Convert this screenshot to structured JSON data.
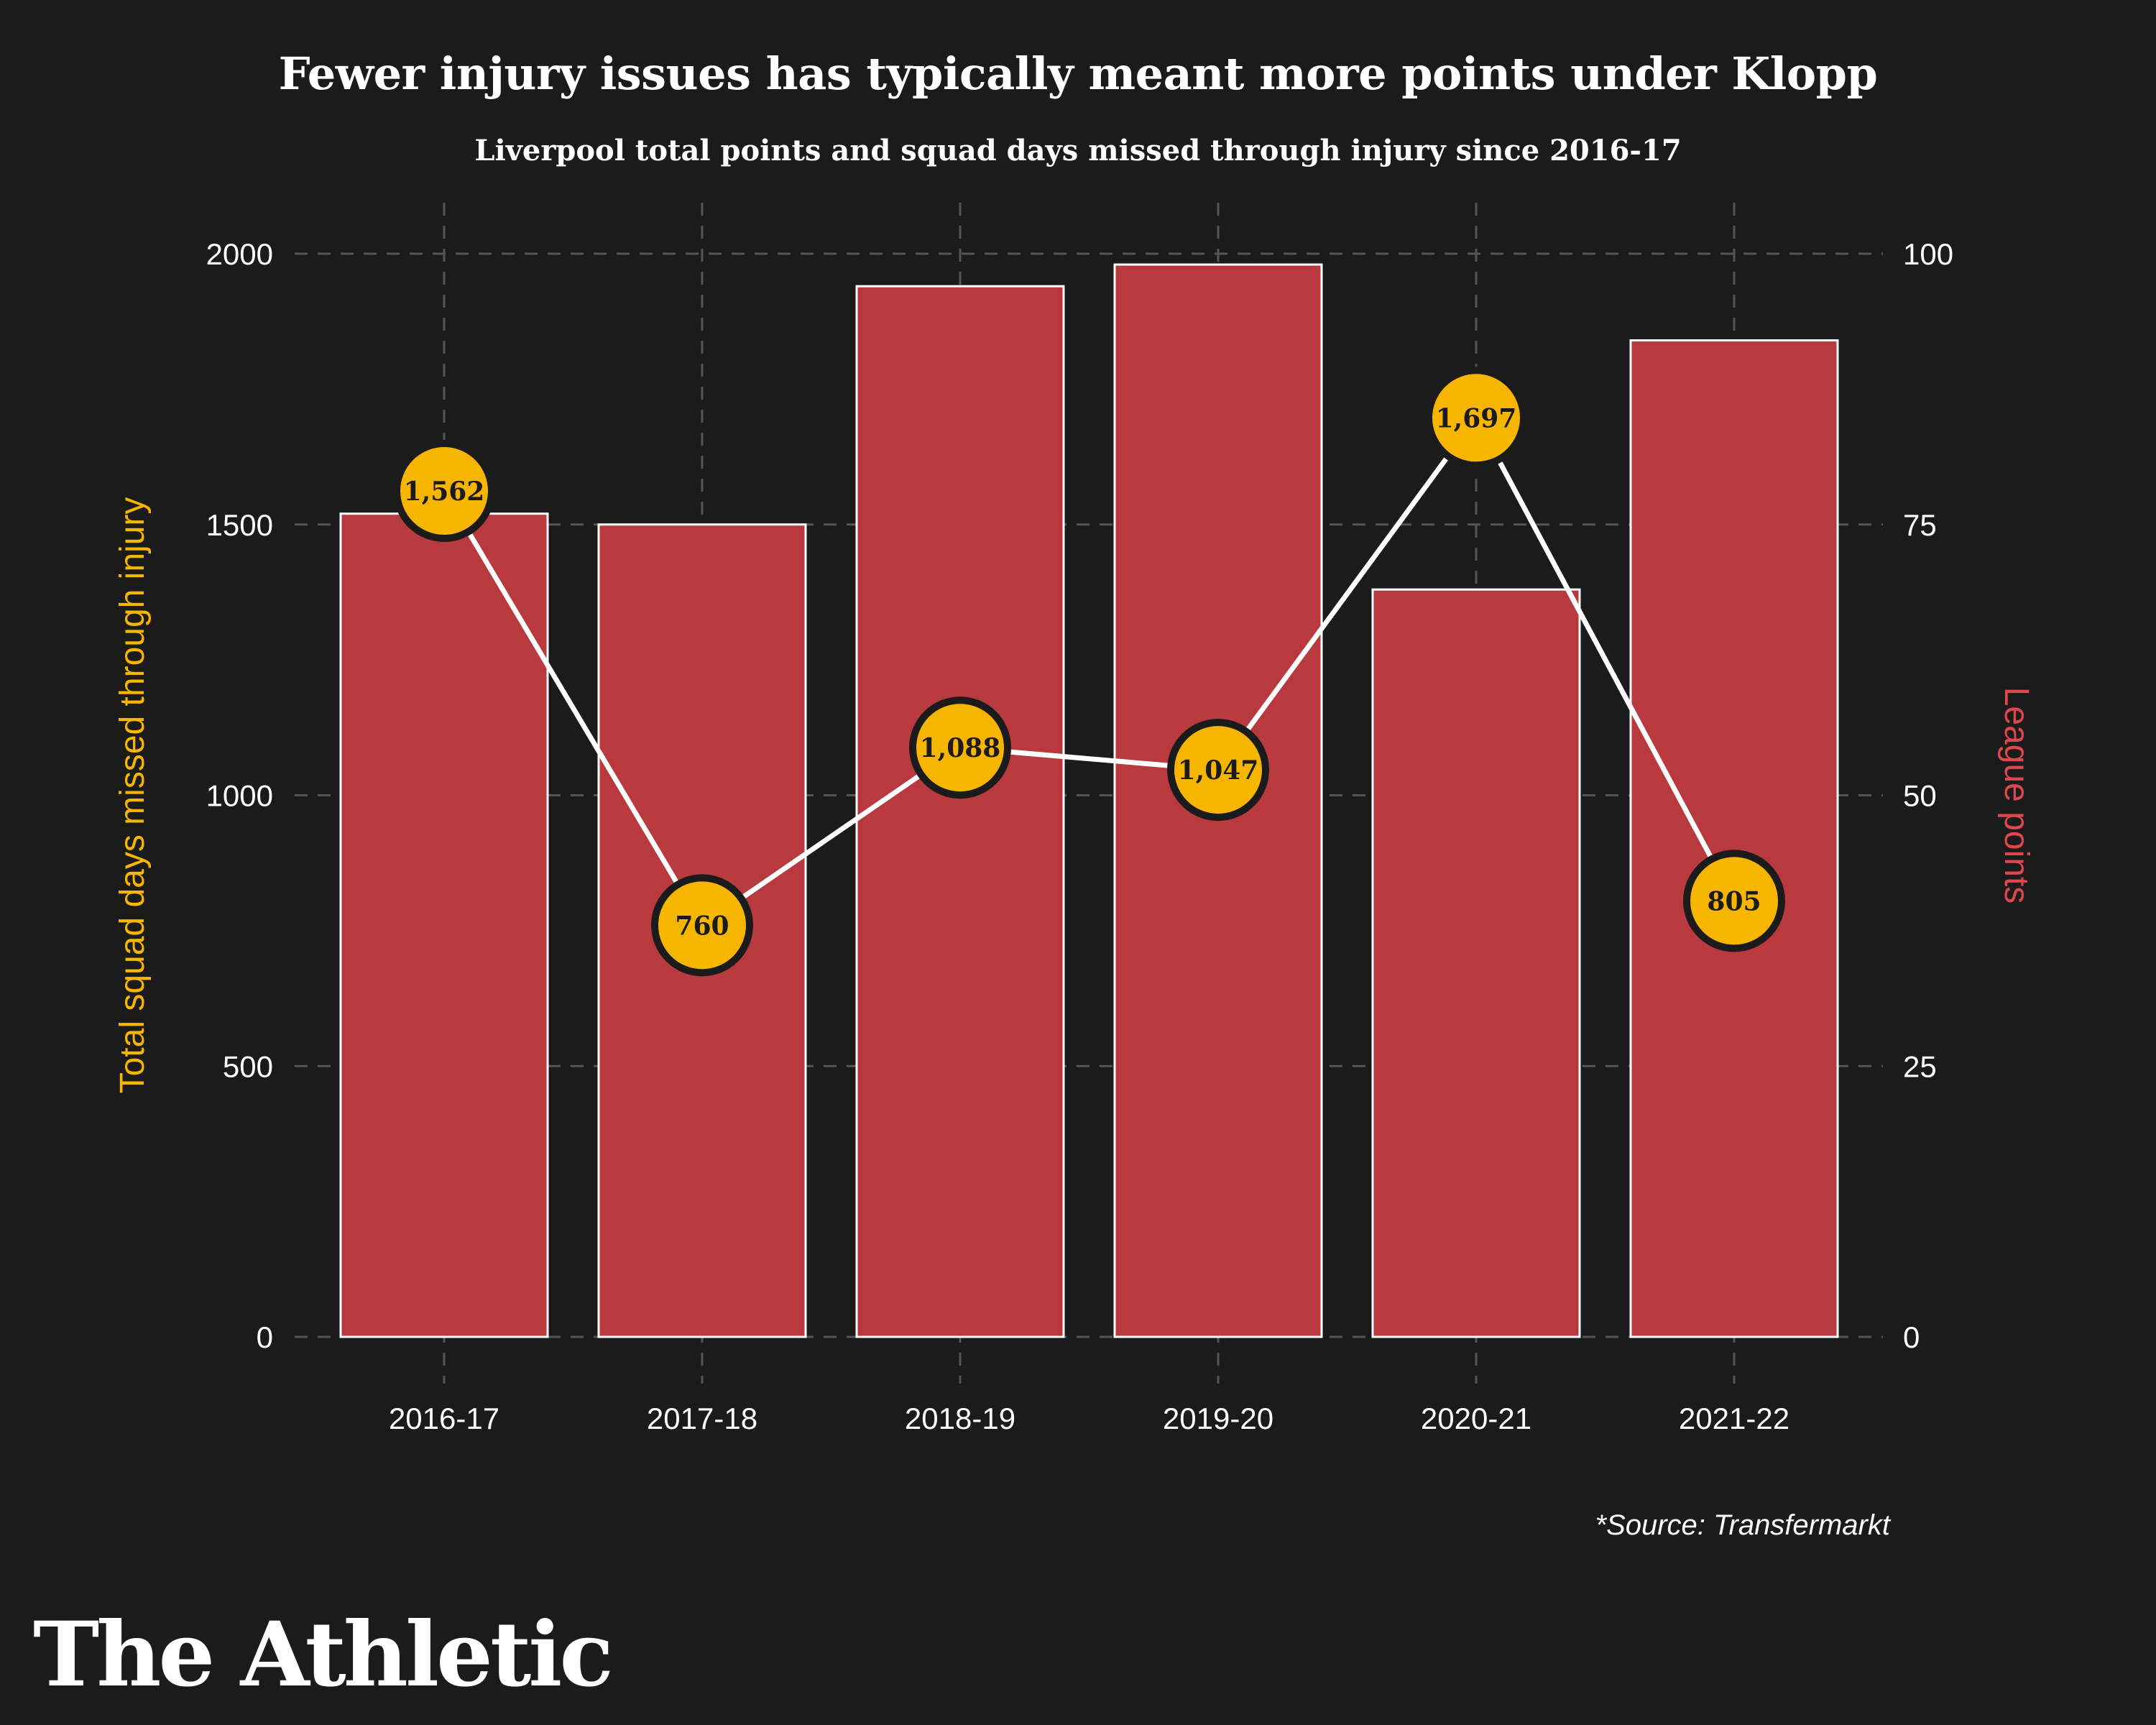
{
  "header": {
    "title": "Fewer injury issues has typically meant more points under Klopp",
    "subtitle": "Liverpool total points and squad days missed through injury since 2016-17"
  },
  "footer": {
    "source": "*Source: Transfermarkt",
    "brand": "The Athletic"
  },
  "colors": {
    "background": "#1b1b1b",
    "bar": "#b83a3f",
    "bar_outline": "#ffffff",
    "marker": "#f6b600",
    "marker_outline": "#1b1b1b",
    "line": "#ffffff",
    "grid": "#555555",
    "left_axis_label": "#f6b600",
    "right_axis_label": "#e0464d"
  },
  "chart_data": {
    "type": "bar+line",
    "title": "Fewer injury issues has typically meant more points under Klopp",
    "categories": [
      "2016-17",
      "2017-18",
      "2018-19",
      "2019-20",
      "2020-21",
      "2021-22"
    ],
    "series": [
      {
        "name": "League points",
        "type": "bar",
        "axis": "right",
        "values": [
          76,
          75,
          97,
          99,
          69,
          92
        ]
      },
      {
        "name": "Total squad days missed through injury",
        "type": "line",
        "axis": "left",
        "values": [
          1562,
          760,
          1088,
          1047,
          1697,
          805
        ],
        "labels": [
          "1,562",
          "760",
          "1,088",
          "1,047",
          "1,697",
          "805"
        ]
      }
    ],
    "left_axis": {
      "label": "Total squad days missed through injury",
      "ylim": [
        0,
        2000
      ],
      "ticks": [
        "0",
        "500",
        "1000",
        "1500",
        "2000"
      ]
    },
    "right_axis": {
      "label": "League points",
      "ylim": [
        0,
        100
      ],
      "ticks": [
        "0",
        "25",
        "50",
        "75",
        "100"
      ]
    },
    "grid": true
  }
}
